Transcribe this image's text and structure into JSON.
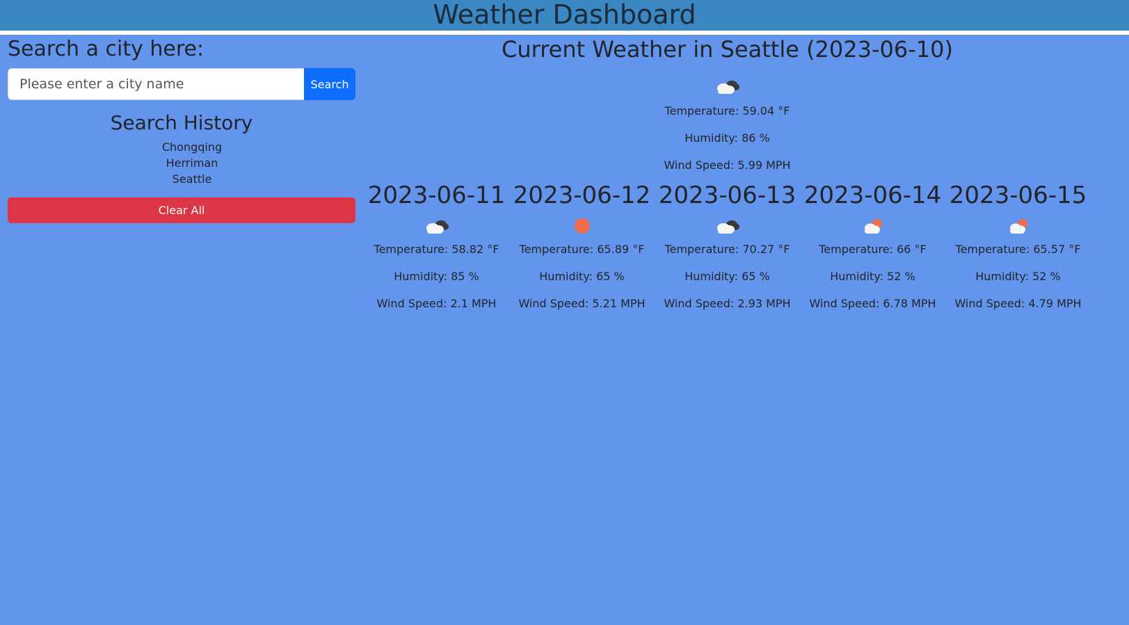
{
  "header": {
    "title": "Weather Dashboard"
  },
  "search": {
    "heading": "Search a city here:",
    "placeholder": "Please enter a city name",
    "button_label": "Search"
  },
  "history": {
    "title": "Search History",
    "items": [
      "Chongqing",
      "Herriman",
      "Seattle"
    ],
    "clear_label": "Clear All"
  },
  "current": {
    "title": "Current Weather in Seattle (2023-06-10)",
    "icon": "broken-clouds-icon",
    "temperature": "Temperature: 59.04 °F",
    "humidity": "Humidity: 86 %",
    "wind": "Wind Speed: 5.99 MPH"
  },
  "forecast": [
    {
      "date": "2023-06-11",
      "icon": "broken-clouds-icon",
      "temperature": "Temperature: 58.82 °F",
      "humidity": "Humidity: 85 %",
      "wind": "Wind Speed: 2.1 MPH"
    },
    {
      "date": "2023-06-12",
      "icon": "clear-sky-icon",
      "temperature": "Temperature: 65.89 °F",
      "humidity": "Humidity: 65 %",
      "wind": "Wind Speed: 5.21 MPH"
    },
    {
      "date": "2023-06-13",
      "icon": "broken-clouds-icon",
      "temperature": "Temperature: 70.27 °F",
      "humidity": "Humidity: 65 %",
      "wind": "Wind Speed: 2.93 MPH"
    },
    {
      "date": "2023-06-14",
      "icon": "few-clouds-icon",
      "temperature": "Temperature: 66 °F",
      "humidity": "Humidity: 52 %",
      "wind": "Wind Speed: 6.78 MPH"
    },
    {
      "date": "2023-06-15",
      "icon": "few-clouds-icon",
      "temperature": "Temperature: 65.57 °F",
      "humidity": "Humidity: 52 %",
      "wind": "Wind Speed: 4.79 MPH"
    }
  ],
  "colors": {
    "background": "#6495ED",
    "header": "#3A87C2",
    "search_button": "#0D6EFD",
    "clear_button": "#DC3545",
    "sun": "#EE6E4C"
  }
}
